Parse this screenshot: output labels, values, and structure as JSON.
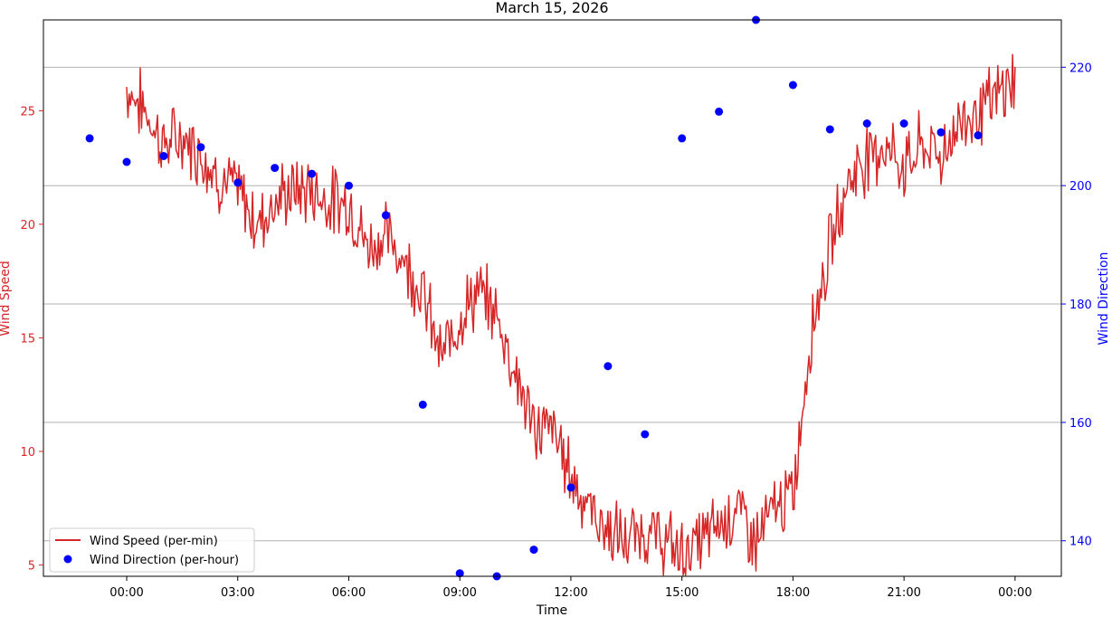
{
  "chart_data": {
    "type": "line",
    "title": "March 15, 2026",
    "xlabel": "Time",
    "ylabel_left": "Wind Speed",
    "ylabel_right": "Wind Direction",
    "x_ticks": [
      "00:00",
      "03:00",
      "06:00",
      "09:00",
      "12:00",
      "15:00",
      "18:00",
      "21:00",
      "00:00"
    ],
    "x_tick_hours": [
      0,
      3,
      6,
      9,
      12,
      15,
      18,
      21,
      24
    ],
    "xlim_hours": [
      -2.25,
      25.25
    ],
    "y_left_ticks": [
      5,
      10,
      15,
      20,
      25
    ],
    "y_left_range": [
      4.5,
      29.0
    ],
    "y_right_ticks": [
      140,
      160,
      180,
      200,
      220
    ],
    "y_right_range": [
      134,
      228
    ],
    "grid": "horizontal lines at right-axis ticks",
    "legend_position": "lower-left",
    "colors": {
      "speed": "#d62728",
      "direction": "#0000ff",
      "left_axis": "#d62728",
      "right_axis": "#0000ff",
      "grid": "#b0b0b0"
    },
    "series": [
      {
        "name": "Wind Speed (per-min)",
        "kind": "line",
        "axis": "left",
        "approx_hourly_x": [
          0,
          0.5,
          1,
          1.5,
          2,
          2.5,
          3,
          3.5,
          4,
          4.5,
          5,
          5.5,
          6,
          6.5,
          7,
          7.5,
          8,
          8.5,
          9,
          9.5,
          10,
          10.5,
          11,
          11.5,
          12,
          12.5,
          13,
          13.5,
          14,
          14.5,
          15,
          15.5,
          16,
          16.5,
          17,
          17.5,
          18,
          18.5,
          19,
          19.5,
          20,
          20.5,
          21,
          21.5,
          22,
          22.5,
          23,
          23.5,
          24
        ],
        "approx_hourly_y": [
          26.0,
          25.0,
          23.5,
          23.8,
          23.2,
          22.0,
          21.5,
          20.0,
          21.0,
          21.5,
          21.5,
          21.0,
          21.0,
          19.0,
          19.5,
          18.5,
          17.0,
          14.0,
          16.0,
          17.0,
          16.0,
          13.5,
          11.0,
          11.0,
          9.0,
          7.5,
          6.5,
          6.0,
          6.5,
          6.0,
          5.5,
          6.0,
          6.8,
          7.5,
          6.0,
          7.5,
          8.0,
          15.5,
          19.0,
          22.0,
          23.0,
          23.5,
          22.5,
          23.5,
          23.0,
          24.5,
          25.0,
          25.5,
          26.5
        ]
      },
      {
        "name": "Wind Direction (per-hour)",
        "kind": "scatter",
        "axis": "right",
        "x": [
          -1,
          0,
          1,
          2,
          3,
          4,
          5,
          6,
          7,
          8,
          9,
          10,
          11,
          12,
          13,
          14,
          15,
          16,
          17,
          18,
          19,
          20,
          21,
          22,
          23
        ],
        "y": [
          208,
          204,
          205,
          206.5,
          200.5,
          203,
          202,
          200,
          195,
          163,
          134.5,
          134,
          138.5,
          149,
          169.5,
          158,
          208,
          212.5,
          228,
          217,
          209.5,
          210.5,
          210.5,
          209,
          208.5
        ]
      }
    ]
  }
}
